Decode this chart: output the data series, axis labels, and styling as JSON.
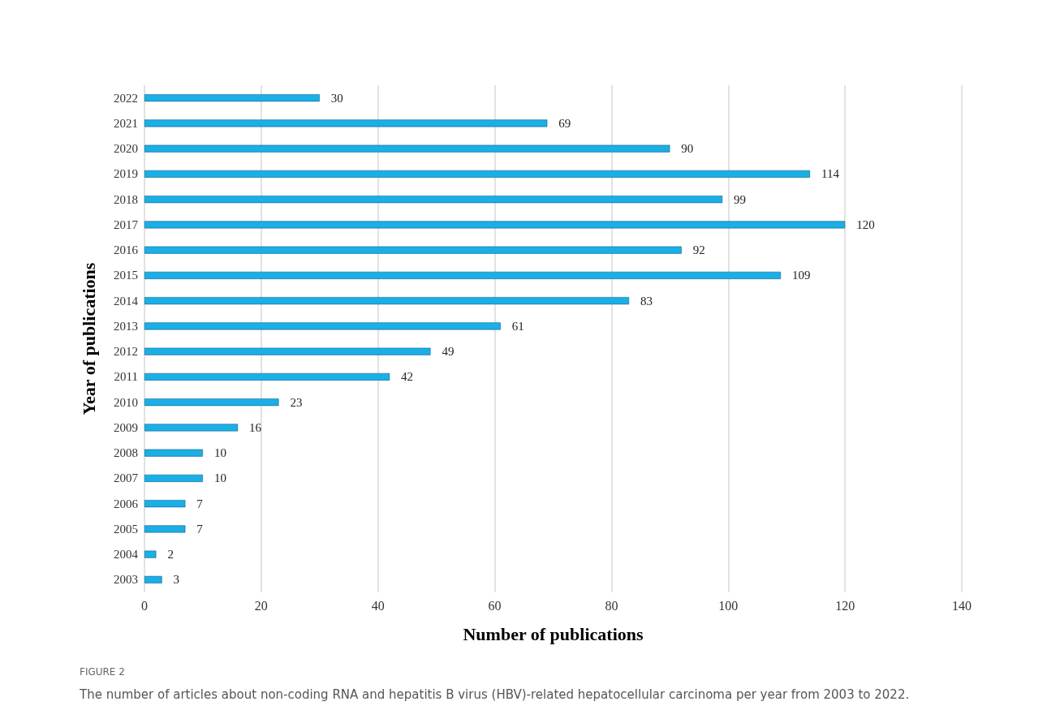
{
  "chart_data": {
    "type": "bar",
    "orientation": "horizontal",
    "xlabel": "Number of publications",
    "ylabel": "Year of publications",
    "categories": [
      "2022",
      "2021",
      "2020",
      "2019",
      "2018",
      "2017",
      "2016",
      "2015",
      "2014",
      "2013",
      "2012",
      "2011",
      "2010",
      "2009",
      "2008",
      "2007",
      "2006",
      "2005",
      "2004",
      "2003"
    ],
    "values": [
      30,
      69,
      90,
      114,
      99,
      120,
      92,
      109,
      83,
      61,
      49,
      42,
      23,
      16,
      10,
      10,
      7,
      7,
      2,
      3
    ],
    "color": "#1aafe6",
    "xlim": [
      0,
      140
    ],
    "xticks": [
      0,
      20,
      40,
      60,
      80,
      100,
      120,
      140
    ],
    "grid": "x",
    "data_labels": true,
    "annotations": [
      "FIGURE 2",
      "The number of articles about non-coding RNA and hepatitis B virus (HBV)-related hepatocellular carcinoma per year from 2003 to 2022."
    ]
  }
}
